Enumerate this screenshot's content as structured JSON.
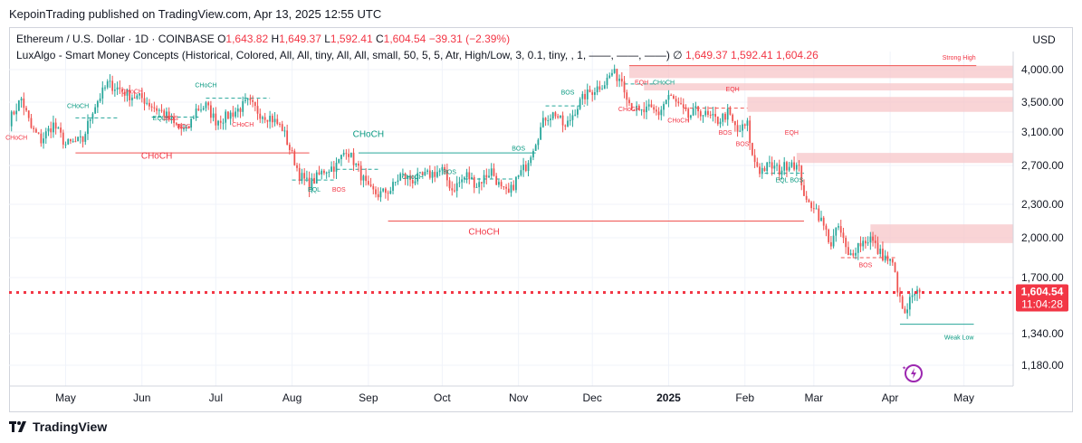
{
  "header": {
    "published": "KepoinTrading published on TradingView.com, Apr 13, 2025 12:55 UTC"
  },
  "legend": {
    "symbol": "Ethereum / U.S. Dollar · 1D · COINBASE",
    "o_label": "O",
    "o_value": "1,643.82",
    "h_label": "H",
    "h_value": "1,649.37",
    "l_label": "L",
    "l_value": "1,592.41",
    "c_label": "C",
    "c_value": "1,604.54",
    "change": "−39.31 (−2.39%)",
    "indicator": "LuxAlgo - Smart Money Concepts (Historical, Colored, All, All, tiny, All, All, small, 50, 5, 5, Atr, High/Low, 3, 0.1, tiny, , 1, ——, ——, ——)",
    "ind_sym": "∅",
    "ind_values": "1,649.37  1,592.41  1,604.26"
  },
  "currency": "USD",
  "price_label": {
    "value": "1,604.54",
    "countdown": "11:04:28"
  },
  "footer": {
    "brand": "TradingView"
  },
  "colors": {
    "up": "#26a69a",
    "down": "#ef5350",
    "zone": "#f7c6c8",
    "label_red": "#f23645",
    "label_green": "#089981"
  },
  "chart_data": {
    "type": "candlestick",
    "yaxis_ticks": [
      4000,
      3500,
      3100,
      2700,
      2300,
      2000,
      1700,
      1340,
      1180
    ],
    "ytick_labels": [
      "4,000.00",
      "3,500.00",
      "3,100.00",
      "2,700.00",
      "2,300.00",
      "2,000.00",
      "1,700.00",
      "1,340.00",
      "1,180.00"
    ],
    "x_labels": [
      "May",
      "Jun",
      "Jul",
      "Aug",
      "Sep",
      "Oct",
      "Nov",
      "Dec",
      "2025",
      "Feb",
      "Mar",
      "Apr",
      "May"
    ],
    "x_label_index": [
      23,
      54,
      84,
      115,
      146,
      176,
      207,
      237,
      268,
      299,
      327,
      358,
      388
    ],
    "x_range": [
      0,
      408
    ],
    "last_close": 1604.54,
    "anchors": [
      [
        0,
        3250
      ],
      [
        5,
        3550
      ],
      [
        9,
        3150
      ],
      [
        13,
        3000
      ],
      [
        18,
        3200
      ],
      [
        23,
        2950
      ],
      [
        30,
        3000
      ],
      [
        34,
        3400
      ],
      [
        40,
        3780
      ],
      [
        45,
        3700
      ],
      [
        49,
        3600
      ],
      [
        54,
        3560
      ],
      [
        58,
        3450
      ],
      [
        63,
        3350
      ],
      [
        67,
        3200
      ],
      [
        72,
        3100
      ],
      [
        76,
        3400
      ],
      [
        80,
        3450
      ],
      [
        84,
        3250
      ],
      [
        88,
        3300
      ],
      [
        93,
        3400
      ],
      [
        97,
        3500
      ],
      [
        102,
        3350
      ],
      [
        106,
        3300
      ],
      [
        111,
        3150
      ],
      [
        114,
        2900
      ],
      [
        118,
        2600
      ],
      [
        122,
        2500
      ],
      [
        128,
        2650
      ],
      [
        133,
        2700
      ],
      [
        137,
        2900
      ],
      [
        141,
        2700
      ],
      [
        146,
        2450
      ],
      [
        150,
        2400
      ],
      [
        155,
        2450
      ],
      [
        159,
        2600
      ],
      [
        164,
        2550
      ],
      [
        170,
        2600
      ],
      [
        176,
        2650
      ],
      [
        180,
        2450
      ],
      [
        186,
        2600
      ],
      [
        190,
        2500
      ],
      [
        196,
        2650
      ],
      [
        200,
        2450
      ],
      [
        203,
        2400
      ],
      [
        206,
        2550
      ],
      [
        210,
        2700
      ],
      [
        214,
        3000
      ],
      [
        218,
        3300
      ],
      [
        222,
        3350
      ],
      [
        226,
        3150
      ],
      [
        230,
        3400
      ],
      [
        234,
        3600
      ],
      [
        238,
        3700
      ],
      [
        242,
        3800
      ],
      [
        245,
        3950
      ],
      [
        249,
        3850
      ],
      [
        252,
        3500
      ],
      [
        256,
        3350
      ],
      [
        260,
        3400
      ],
      [
        264,
        3350
      ],
      [
        268,
        3600
      ],
      [
        272,
        3450
      ],
      [
        276,
        3300
      ],
      [
        280,
        3400
      ],
      [
        284,
        3300
      ],
      [
        288,
        3250
      ],
      [
        292,
        3350
      ],
      [
        296,
        3100
      ],
      [
        300,
        3200
      ],
      [
        302,
        2800
      ],
      [
        305,
        2650
      ],
      [
        309,
        2700
      ],
      [
        313,
        2650
      ],
      [
        318,
        2750
      ],
      [
        321,
        2650
      ],
      [
        324,
        2300
      ],
      [
        327,
        2300
      ],
      [
        330,
        2150
      ],
      [
        334,
        1950
      ],
      [
        337,
        2100
      ],
      [
        341,
        1850
      ],
      [
        345,
        1950
      ],
      [
        350,
        2000
      ],
      [
        353,
        1900
      ],
      [
        356,
        1850
      ],
      [
        359,
        1800
      ],
      [
        362,
        1550
      ],
      [
        364,
        1450
      ],
      [
        366,
        1550
      ],
      [
        368,
        1580
      ],
      [
        370,
        1604.54
      ]
    ],
    "annotations": [
      {
        "text": "CHoCH",
        "x": 3,
        "y": 3010,
        "color": "red"
      },
      {
        "text": "CHoCH",
        "x": 28,
        "y": 3420,
        "color": "green"
      },
      {
        "text": "CHoCH",
        "x": 50,
        "y": 3630,
        "color": "red"
      },
      {
        "text": "EQL",
        "x": 61,
        "y": 3260,
        "color": "green"
      },
      {
        "text": "BOS",
        "x": 66,
        "y": 3260,
        "color": "red"
      },
      {
        "text": "BOS",
        "x": 71,
        "y": 3150,
        "color": "red"
      },
      {
        "text": "CHoCH",
        "x": 80,
        "y": 3730,
        "color": "green"
      },
      {
        "text": "CHoCH",
        "x": 95,
        "y": 3170,
        "color": "red"
      },
      {
        "text": "CHoCH",
        "x": 60,
        "y": 2780,
        "color": "red"
      },
      {
        "text": "EQL",
        "x": 124,
        "y": 2430,
        "color": "green"
      },
      {
        "text": "BOS",
        "x": 134,
        "y": 2430,
        "color": "red"
      },
      {
        "text": "CHoCH",
        "x": 146,
        "y": 3040,
        "color": "green"
      },
      {
        "text": "CHoCH",
        "x": 164,
        "y": 2560,
        "color": "green"
      },
      {
        "text": "BOS",
        "x": 179,
        "y": 2610,
        "color": "green"
      },
      {
        "text": "BOS",
        "x": 207,
        "y": 2880,
        "color": "green"
      },
      {
        "text": "CHoCH",
        "x": 193,
        "y": 2030,
        "color": "red"
      },
      {
        "text": "BOS",
        "x": 227,
        "y": 3620,
        "color": "green"
      },
      {
        "text": "EQH",
        "x": 257,
        "y": 3770,
        "color": "red"
      },
      {
        "text": "CHoCH",
        "x": 266,
        "y": 3770,
        "color": "green"
      },
      {
        "text": "CHoCH",
        "x": 252,
        "y": 3380,
        "color": "red"
      },
      {
        "text": "CHoCH",
        "x": 272,
        "y": 3230,
        "color": "red"
      },
      {
        "text": "EQH",
        "x": 294,
        "y": 3670,
        "color": "red"
      },
      {
        "text": "BOS",
        "x": 291,
        "y": 3070,
        "color": "red"
      },
      {
        "text": "BOS",
        "x": 298,
        "y": 2930,
        "color": "red"
      },
      {
        "text": "EQH",
        "x": 318,
        "y": 3070,
        "color": "red"
      },
      {
        "text": "EQL",
        "x": 314,
        "y": 2530,
        "color": "green"
      },
      {
        "text": "BOS",
        "x": 320,
        "y": 2530,
        "color": "green"
      },
      {
        "text": "BOS",
        "x": 348,
        "y": 1780,
        "color": "red"
      },
      {
        "text": "Strong High",
        "x": 386,
        "y": 4150,
        "color": "red"
      },
      {
        "text": "Weak Low",
        "x": 386,
        "y": 1310,
        "color": "green"
      }
    ],
    "zones": [
      {
        "x1": 252,
        "x2": 408,
        "y1": 3870,
        "y2": 4060
      },
      {
        "x1": 258,
        "x2": 408,
        "y1": 3680,
        "y2": 3790
      },
      {
        "x1": 300,
        "x2": 408,
        "y1": 3370,
        "y2": 3580
      },
      {
        "x1": 320,
        "x2": 408,
        "y1": 2730,
        "y2": 2850
      },
      {
        "x1": 350,
        "x2": 408,
        "y1": 1960,
        "y2": 2120
      }
    ],
    "hlines": [
      {
        "x1": 252,
        "x2": 393,
        "y": 4060,
        "color": "red",
        "dash": false
      },
      {
        "x1": 27,
        "x2": 122,
        "y": 2850,
        "color": "red",
        "dash": false
      },
      {
        "x1": 142,
        "x2": 214,
        "y": 2850,
        "color": "green",
        "dash": false
      },
      {
        "x1": 154,
        "x2": 323,
        "y": 2150,
        "color": "red",
        "dash": false
      },
      {
        "x1": 362,
        "x2": 392,
        "y": 1400,
        "color": "green",
        "dash": false
      },
      {
        "x1": 27,
        "x2": 44,
        "y": 3290,
        "color": "green",
        "dash": true
      },
      {
        "x1": 58,
        "x2": 77,
        "y": 3300,
        "color": "green",
        "dash": true
      },
      {
        "x1": 80,
        "x2": 106,
        "y": 3560,
        "color": "green",
        "dash": true
      },
      {
        "x1": 115,
        "x2": 132,
        "y": 2550,
        "color": "green",
        "dash": true
      },
      {
        "x1": 133,
        "x2": 150,
        "y": 2660,
        "color": "green",
        "dash": true
      },
      {
        "x1": 185,
        "x2": 205,
        "y": 2560,
        "color": "green",
        "dash": true
      },
      {
        "x1": 218,
        "x2": 234,
        "y": 3450,
        "color": "green",
        "dash": true
      },
      {
        "x1": 250,
        "x2": 262,
        "y": 3780,
        "color": "green",
        "dash": true
      },
      {
        "x1": 274,
        "x2": 300,
        "y": 3420,
        "color": "red",
        "dash": true
      },
      {
        "x1": 307,
        "x2": 323,
        "y": 2620,
        "color": "green",
        "dash": true
      },
      {
        "x1": 338,
        "x2": 360,
        "y": 1850,
        "color": "red",
        "dash": true
      }
    ]
  }
}
